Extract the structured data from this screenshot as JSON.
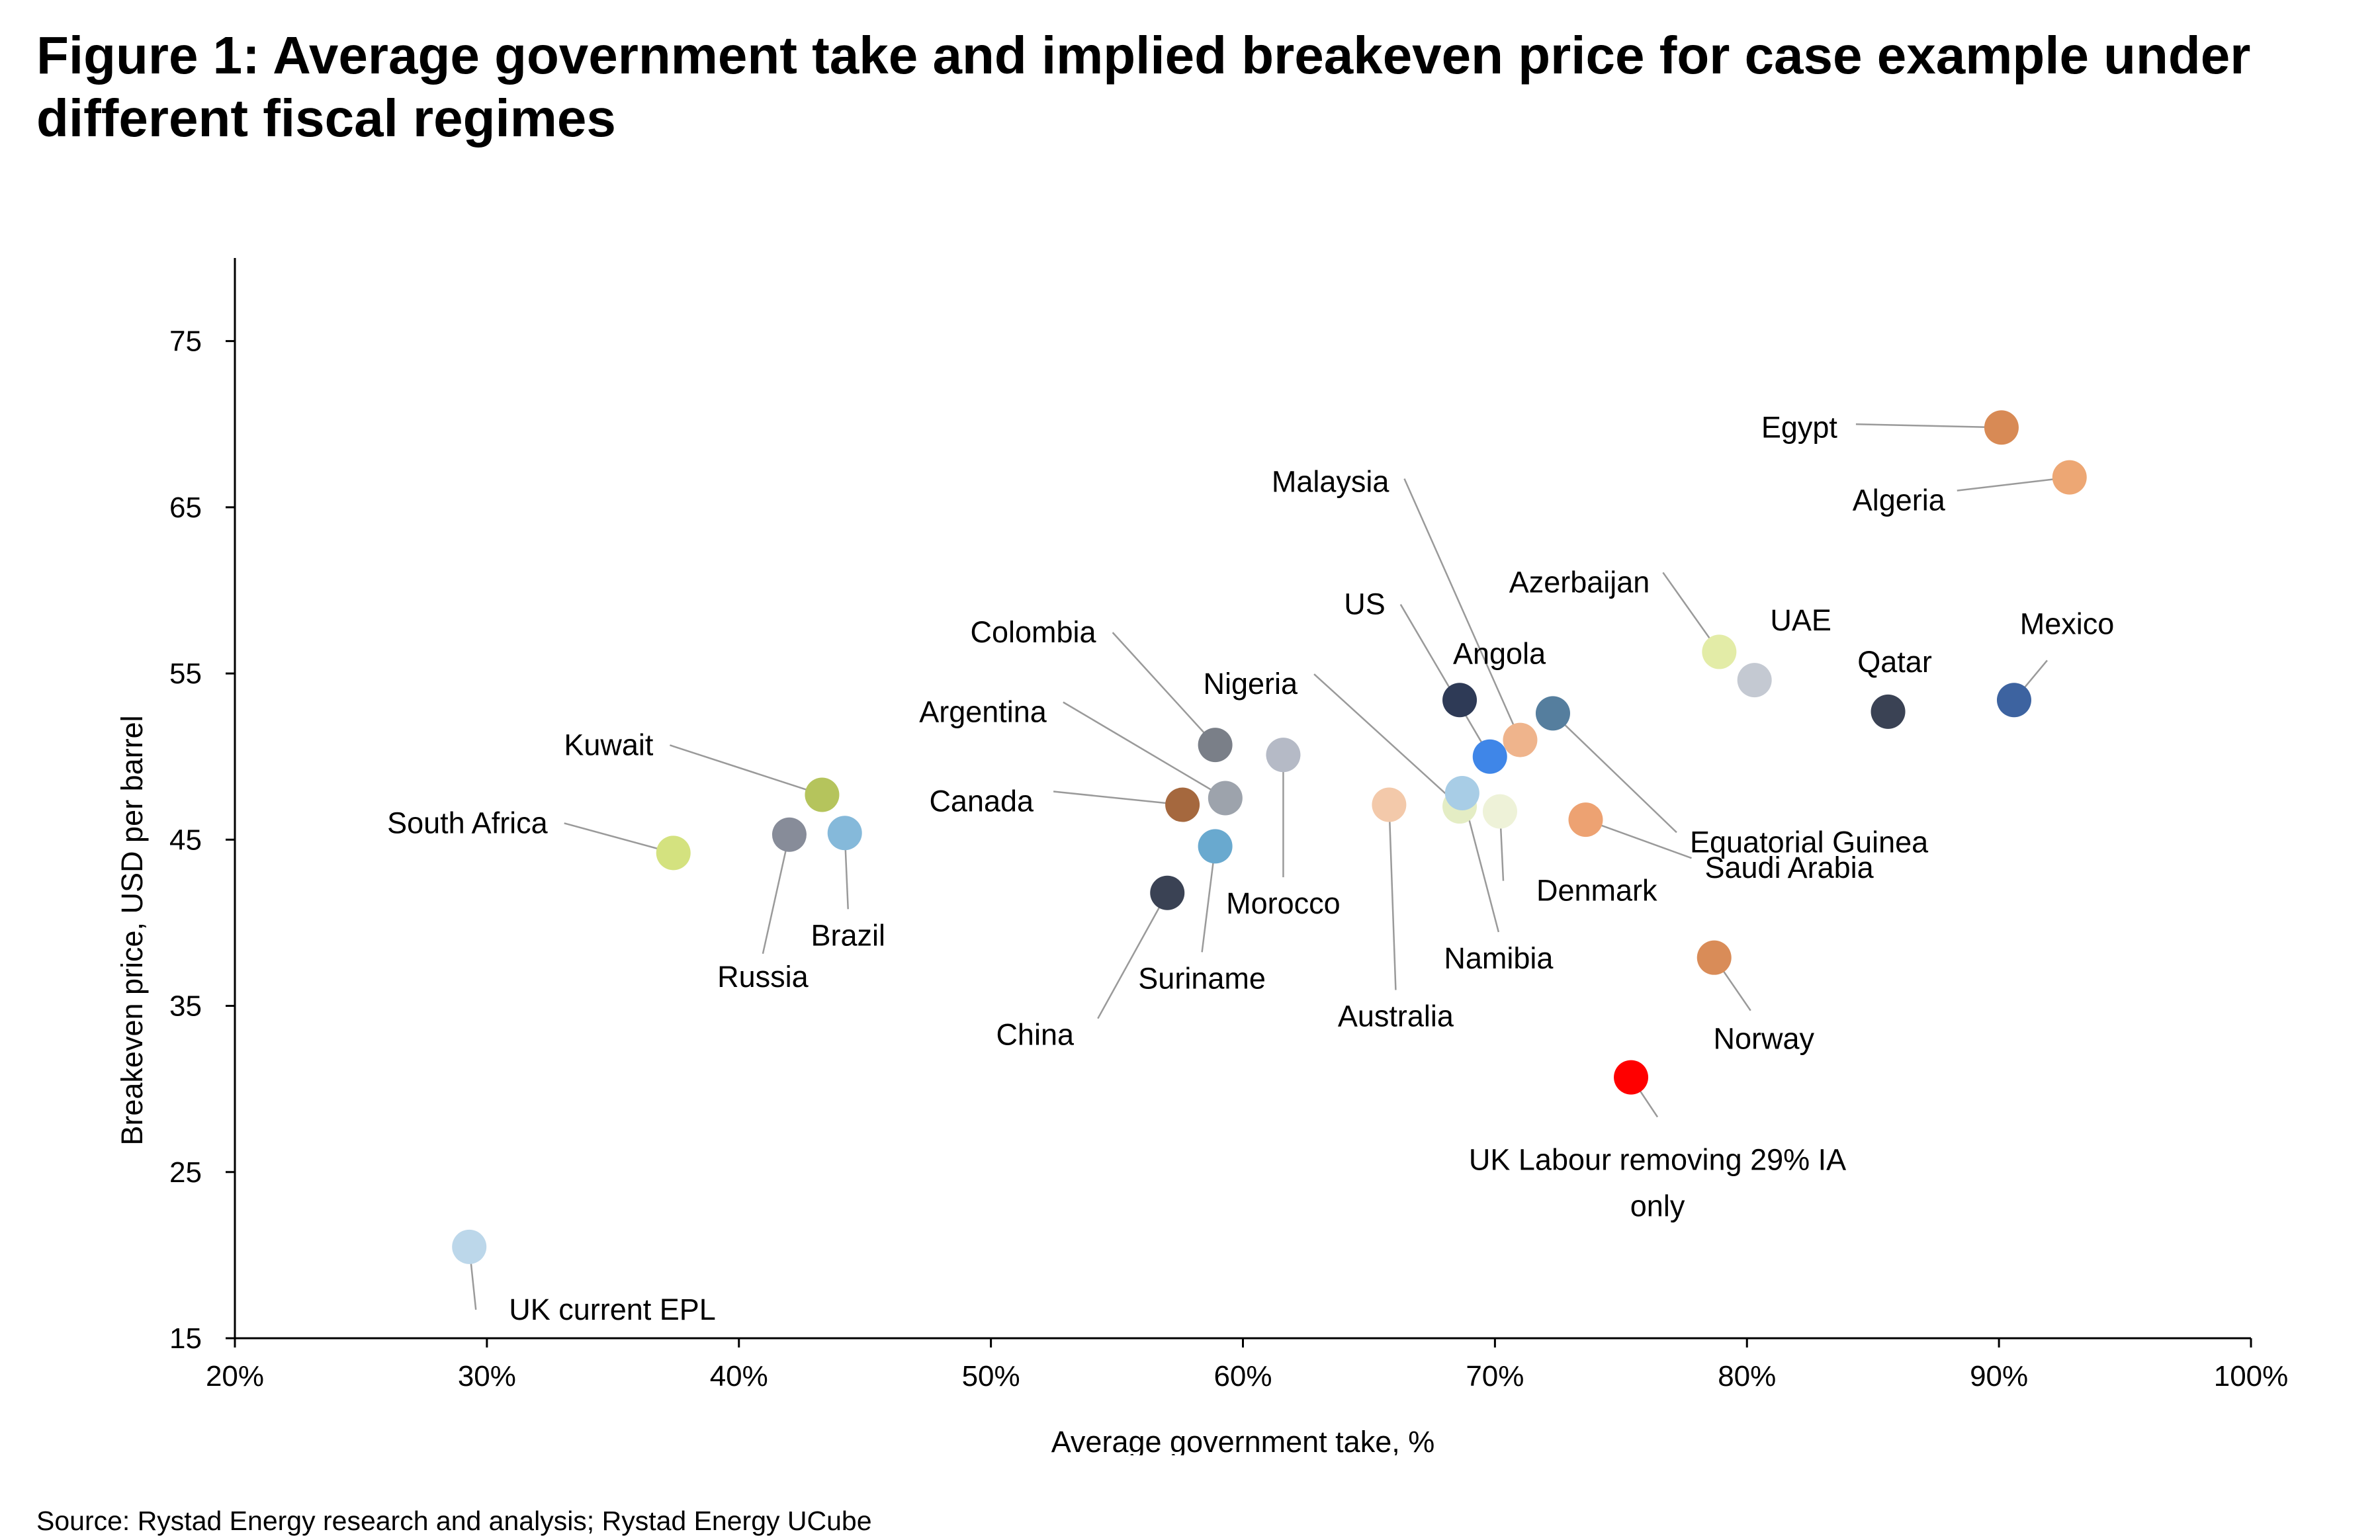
{
  "figure": {
    "title": "Figure 1: Average government take and implied breakeven price for case example under different fiscal regimes",
    "source": "Source: Rystad Energy research and analysis; Rystad Energy UCube"
  },
  "chart_data": {
    "type": "scatter",
    "xlabel": "Average government take, %",
    "ylabel": "Breakeven price, USD per barrel",
    "xlim": [
      20,
      100
    ],
    "ylim": [
      15,
      80
    ],
    "x_ticks": [
      20,
      30,
      40,
      50,
      60,
      70,
      80,
      90,
      100
    ],
    "x_tick_labels": [
      "20%",
      "30%",
      "40%",
      "50%",
      "60%",
      "70%",
      "80%",
      "90%",
      "100%"
    ],
    "y_ticks": [
      15,
      25,
      35,
      45,
      55,
      65,
      75
    ],
    "y_tick_labels": [
      "15",
      "25",
      "35",
      "45",
      "55",
      "65",
      "75"
    ],
    "grid": false,
    "legend": "none",
    "points": [
      {
        "label": "UK current EPL",
        "x": 29.3,
        "y": 20.5,
        "color": "#bcd7ea"
      },
      {
        "label": "South Africa",
        "x": 37.4,
        "y": 44.2,
        "color": "#d4e27f"
      },
      {
        "label": "Kuwait",
        "x": 43.3,
        "y": 47.7,
        "color": "#b5c45c"
      },
      {
        "label": "Russia",
        "x": 42.0,
        "y": 45.3,
        "color": "#878c99"
      },
      {
        "label": "Brazil",
        "x": 44.2,
        "y": 45.4,
        "color": "#85b9da"
      },
      {
        "label": "China",
        "x": 57.0,
        "y": 41.8,
        "color": "#3a4254"
      },
      {
        "label": "Canada",
        "x": 57.6,
        "y": 47.1,
        "color": "#a5683e"
      },
      {
        "label": "Suriname",
        "x": 58.9,
        "y": 44.6,
        "color": "#69a9cf"
      },
      {
        "label": "Colombia",
        "x": 58.9,
        "y": 50.7,
        "color": "#7a7f88"
      },
      {
        "label": "Argentina",
        "x": 59.3,
        "y": 47.5,
        "color": "#9da3ac"
      },
      {
        "label": "Morocco",
        "x": 61.6,
        "y": 50.1,
        "color": "#b5bac6"
      },
      {
        "label": "Australia",
        "x": 65.8,
        "y": 47.1,
        "color": "#f3c9aa"
      },
      {
        "label": "Nigeria",
        "x": 68.6,
        "y": 47.0,
        "color": "#e4edc4"
      },
      {
        "label": "Namibia",
        "x": 68.7,
        "y": 47.8,
        "color": "#a8cde6"
      },
      {
        "label": "Angola",
        "x": 68.6,
        "y": 53.4,
        "color": "#2e3a56"
      },
      {
        "label": "US",
        "x": 69.8,
        "y": 50.0,
        "color": "#3f86e8"
      },
      {
        "label": "Malaysia",
        "x": 71.0,
        "y": 51.0,
        "color": "#efb48c"
      },
      {
        "label": "Denmark",
        "x": 70.2,
        "y": 46.7,
        "color": "#eef2d8"
      },
      {
        "label": "Equatorial Guinea",
        "x": 72.3,
        "y": 52.6,
        "color": "#557e9e"
      },
      {
        "label": "Saudi Arabia",
        "x": 73.6,
        "y": 46.2,
        "color": "#eda272"
      },
      {
        "label": "UK Labour removing 29% IA only",
        "x": 75.4,
        "y": 30.7,
        "color": "#ff0000"
      },
      {
        "label": "Azerbaijan",
        "x": 78.9,
        "y": 56.3,
        "color": "#e3eca7"
      },
      {
        "label": "Norway",
        "x": 78.7,
        "y": 37.9,
        "color": "#d98c58"
      },
      {
        "label": "UAE",
        "x": 80.3,
        "y": 54.6,
        "color": "#c4c9d2"
      },
      {
        "label": "Qatar",
        "x": 85.6,
        "y": 52.7,
        "color": "#3a4254"
      },
      {
        "label": "Mexico",
        "x": 90.6,
        "y": 53.4,
        "color": "#3d63a0"
      },
      {
        "label": "Egypt",
        "x": 90.1,
        "y": 69.8,
        "color": "#d88a55"
      },
      {
        "label": "Algeria",
        "x": 92.8,
        "y": 66.8,
        "color": "#eda774"
      }
    ]
  }
}
